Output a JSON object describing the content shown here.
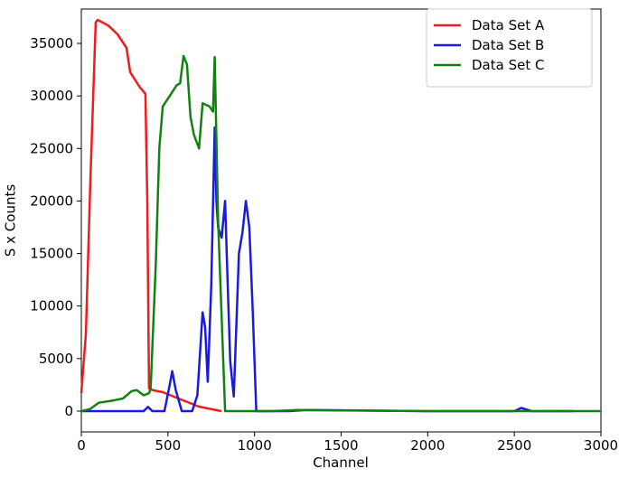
{
  "chart_data": {
    "type": "line",
    "xlabel": "Channel",
    "ylabel": "S x Counts",
    "xlim": [
      0,
      3000
    ],
    "xticks": [
      0,
      500,
      1000,
      1500,
      2000,
      2500,
      3000
    ],
    "ylim": [
      -1980,
      38270
    ],
    "yticks": [
      0,
      5000,
      10000,
      15000,
      20000,
      25000,
      30000,
      35000
    ],
    "legend": "upper right",
    "series": [
      {
        "name": "Data Set A",
        "color": "#ee1c1c",
        "x": [
          0,
          26,
          52,
          83,
          94,
          156,
          209,
          261,
          282,
          339,
          355,
          370,
          381,
          391,
          417,
          470,
          574,
          678,
          808
        ],
        "values": [
          1720,
          7300,
          21900,
          37000,
          37240,
          36700,
          35860,
          34570,
          32250,
          30790,
          30500,
          30200,
          20000,
          2150,
          1980,
          1800,
          1120,
          430,
          0
        ]
      },
      {
        "name": "Data Set B",
        "color": "#1a1adc",
        "x": [
          0,
          360,
          385,
          410,
          480,
          510,
          525,
          545,
          580,
          640,
          670,
          700,
          715,
          730,
          750,
          770,
          780,
          790,
          810,
          830,
          845,
          860,
          880,
          895,
          910,
          930,
          950,
          970,
          990,
          1010,
          1200,
          1300,
          2000,
          2500,
          2540,
          2600,
          2840
        ],
        "values": [
          0,
          0,
          400,
          0,
          0,
          2500,
          3800,
          2000,
          0,
          0,
          1500,
          9400,
          8000,
          2800,
          12000,
          27000,
          20000,
          17500,
          16500,
          20000,
          12000,
          4700,
          1400,
          8000,
          15000,
          17000,
          20000,
          17500,
          9300,
          0,
          0,
          100,
          0,
          0,
          300,
          0,
          0
        ]
      },
      {
        "name": "Data Set C",
        "color": "#138013",
        "x": [
          0,
          50,
          100,
          180,
          240,
          290,
          320,
          360,
          390,
          400,
          430,
          450,
          470,
          510,
          550,
          570,
          590,
          610,
          630,
          650,
          680,
          700,
          740,
          760,
          770,
          790,
          830,
          1100,
          1250,
          2000,
          3000
        ],
        "values": [
          0,
          200,
          800,
          1000,
          1200,
          1900,
          2000,
          1500,
          1700,
          2100,
          14000,
          25000,
          29000,
          30000,
          31000,
          31200,
          33800,
          33000,
          28000,
          26300,
          25000,
          29300,
          29000,
          28500,
          33700,
          18000,
          0,
          0,
          100,
          0,
          0
        ]
      }
    ]
  }
}
